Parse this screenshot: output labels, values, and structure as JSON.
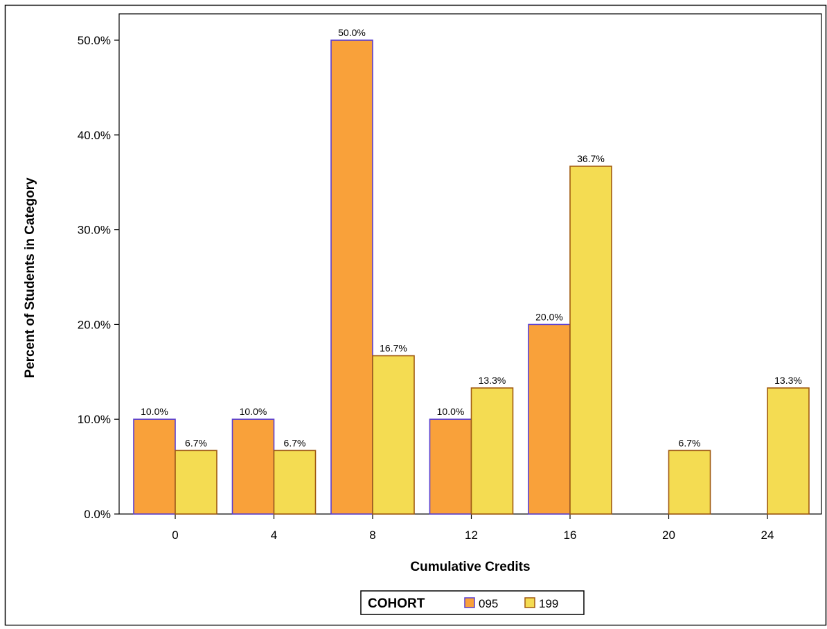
{
  "chart_data": {
    "type": "bar",
    "title": "",
    "xlabel": "Cumulative Credits",
    "ylabel": "Percent of Students in Category",
    "categories": [
      "0",
      "4",
      "8",
      "12",
      "16",
      "20",
      "24"
    ],
    "series": [
      {
        "name": "095",
        "values": [
          10.0,
          10.0,
          50.0,
          10.0,
          20.0,
          null,
          null
        ],
        "labels": [
          "10.0%",
          "10.0%",
          "50.0%",
          "10.0%",
          "20.0%",
          null,
          null
        ],
        "color": "#f9a13a",
        "outline": "#5a3fd0"
      },
      {
        "name": "199",
        "values": [
          6.7,
          6.7,
          16.7,
          13.3,
          36.7,
          6.7,
          13.3
        ],
        "labels": [
          "6.7%",
          "6.7%",
          "16.7%",
          "13.3%",
          "36.7%",
          "6.7%",
          "13.3%"
        ],
        "color": "#f4dc52",
        "outline": "#a05a10"
      }
    ],
    "ylim": [
      0,
      50
    ],
    "yticks": [
      {
        "value": 0,
        "label": "0.0%"
      },
      {
        "value": 10,
        "label": "10.0%"
      },
      {
        "value": 20,
        "label": "20.0%"
      },
      {
        "value": 30,
        "label": "30.0%"
      },
      {
        "value": 40,
        "label": "40.0%"
      },
      {
        "value": 50,
        "label": "50.0%"
      }
    ],
    "grid": false,
    "legend": {
      "title": "COHORT",
      "placement": "bottom-center"
    }
  }
}
